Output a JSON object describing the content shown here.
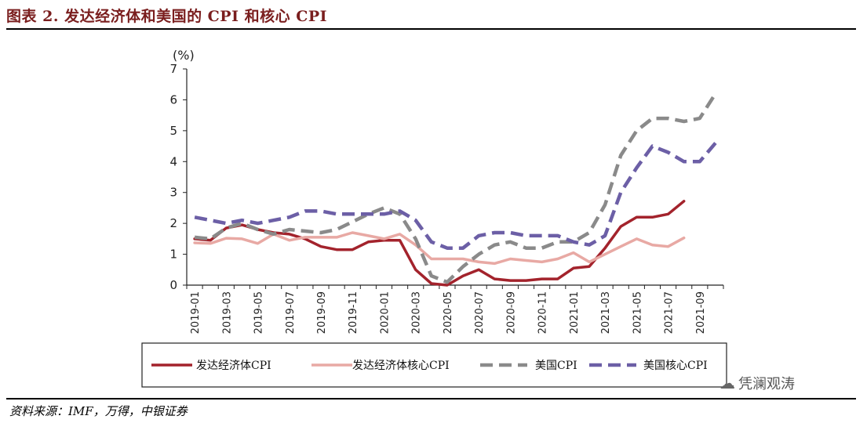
{
  "figure_title": "图表 2. 发达经济体和美国的 CPI 和核心 CPI",
  "source": "资料来源：IMF，万得，中银证券",
  "watermark": "凭澜观涛",
  "chart_data": {
    "type": "line",
    "unit_label": "(%)",
    "ylim": [
      0,
      7
    ],
    "y_ticks": [
      0,
      1,
      2,
      3,
      4,
      5,
      6,
      7
    ],
    "x": [
      "2019-01",
      "2019-02",
      "2019-03",
      "2019-04",
      "2019-05",
      "2019-06",
      "2019-07",
      "2019-08",
      "2019-09",
      "2019-10",
      "2019-11",
      "2019-12",
      "2020-01",
      "2020-02",
      "2020-03",
      "2020-04",
      "2020-05",
      "2020-06",
      "2020-07",
      "2020-08",
      "2020-09",
      "2020-10",
      "2020-11",
      "2020-12",
      "2021-01",
      "2021-02",
      "2021-03",
      "2021-04",
      "2021-05",
      "2021-06",
      "2021-07",
      "2021-08",
      "2021-09",
      "2021-10"
    ],
    "x_tick_labels": [
      "2019-01",
      "2019-03",
      "2019-05",
      "2019-07",
      "2019-09",
      "2019-11",
      "2020-01",
      "2020-03",
      "2020-05",
      "2020-07",
      "2020-09",
      "2020-11",
      "2021-01",
      "2021-03",
      "2021-05",
      "2021-07",
      "2021-09"
    ],
    "grid": false,
    "legend_position": "bottom",
    "series": [
      {
        "name": "发达经济体CPI",
        "color": "#a3232c",
        "dash": "solid",
        "values": [
          1.5,
          1.45,
          1.85,
          1.95,
          1.8,
          1.7,
          1.65,
          1.5,
          1.25,
          1.15,
          1.15,
          1.4,
          1.45,
          1.45,
          0.5,
          0.05,
          0.0,
          0.3,
          0.5,
          0.2,
          0.15,
          0.15,
          0.2,
          0.2,
          0.55,
          0.6,
          1.2,
          1.9,
          2.2,
          2.2,
          2.3,
          2.72,
          null,
          null
        ]
      },
      {
        "name": "发达经济体核心CPI",
        "color": "#e8a9a4",
        "dash": "solid",
        "values": [
          1.37,
          1.35,
          1.52,
          1.5,
          1.35,
          1.65,
          1.45,
          1.55,
          1.55,
          1.55,
          1.7,
          1.6,
          1.5,
          1.65,
          1.3,
          0.85,
          0.85,
          0.85,
          0.75,
          0.7,
          0.85,
          0.8,
          0.75,
          0.85,
          1.05,
          0.75,
          1.0,
          1.25,
          1.5,
          1.3,
          1.25,
          1.53,
          null,
          null
        ]
      },
      {
        "name": "美国CPI",
        "color": "#8a8a8a",
        "dash": "dashed",
        "values": [
          1.55,
          1.5,
          1.85,
          2.0,
          1.8,
          1.65,
          1.8,
          1.75,
          1.7,
          1.8,
          2.05,
          2.3,
          2.5,
          2.3,
          1.5,
          0.3,
          0.1,
          0.6,
          1.0,
          1.3,
          1.4,
          1.2,
          1.2,
          1.4,
          1.4,
          1.7,
          2.6,
          4.2,
          5.0,
          5.4,
          5.4,
          5.3,
          5.4,
          6.2
        ]
      },
      {
        "name": "美国核心CPI",
        "color": "#6c5fa6",
        "dash": "dashed",
        "values": [
          2.2,
          2.1,
          2.0,
          2.1,
          2.0,
          2.1,
          2.2,
          2.4,
          2.4,
          2.3,
          2.3,
          2.3,
          2.3,
          2.4,
          2.1,
          1.4,
          1.2,
          1.2,
          1.6,
          1.7,
          1.7,
          1.6,
          1.6,
          1.6,
          1.4,
          1.3,
          1.6,
          3.0,
          3.8,
          4.5,
          4.3,
          4.0,
          4.0,
          4.6
        ]
      }
    ]
  }
}
